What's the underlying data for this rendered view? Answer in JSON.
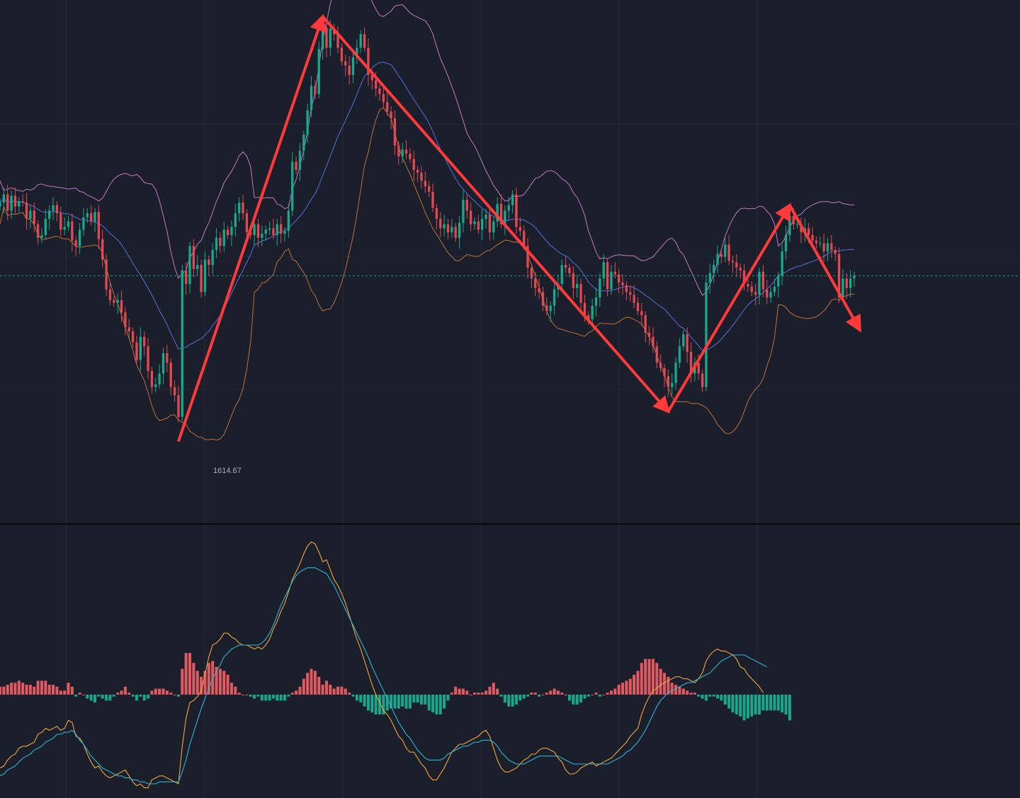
{
  "colors": {
    "background": "#1b1f2b",
    "grid": "#242b38",
    "separator": "#05070b",
    "up_candle": "#1aa88a",
    "down_candle": "#e04a55",
    "bb_upper": "#c678c6",
    "bb_middle": "#5a6ee0",
    "bb_lower": "#c0703a",
    "macd_line": "#f3a53a",
    "signal_line": "#2fb4d8",
    "hist_positive": "#e15a62",
    "hist_negative": "#17a88c",
    "arrow": "#ff3a3a",
    "price_dotted": "#1f8f86"
  },
  "chart_data": [
    {
      "type": "candlestick",
      "panel": "price",
      "indicators": [
        "bollinger_upper",
        "bollinger_middle",
        "bollinger_lower"
      ],
      "annotations": [
        {
          "type": "low_marker",
          "text": "1614.67"
        },
        {
          "type": "trend_arrows",
          "count": 5
        }
      ],
      "close": [
        1776,
        1782,
        1770,
        1781,
        1773,
        1777,
        1776,
        1764,
        1770,
        1760,
        1750,
        1752,
        1764,
        1770,
        1774,
        1768,
        1756,
        1758,
        1762,
        1748,
        1744,
        1756,
        1765,
        1768,
        1762,
        1769,
        1749,
        1734,
        1712,
        1704,
        1702,
        1704,
        1695,
        1684,
        1681,
        1673,
        1660,
        1677,
        1670,
        1652,
        1640,
        1642,
        1650,
        1665,
        1658,
        1640,
        1634,
        1618,
        1726,
        1716,
        1744,
        1727,
        1730,
        1710,
        1734,
        1730,
        1741,
        1750,
        1744,
        1756,
        1752,
        1758,
        1768,
        1776,
        1768,
        1754,
        1752,
        1760,
        1750,
        1753,
        1756,
        1757,
        1752,
        1760,
        1753,
        1755,
        1770,
        1806,
        1800,
        1814,
        1826,
        1844,
        1862,
        1856,
        1889,
        1905,
        1890,
        1904,
        1900,
        1890,
        1880,
        1877,
        1870,
        1883,
        1890,
        1900,
        1890,
        1870,
        1866,
        1860,
        1856,
        1850,
        1843,
        1838,
        1818,
        1810,
        1815,
        1812,
        1808,
        1800,
        1798,
        1792,
        1788,
        1784,
        1772,
        1764,
        1757,
        1760,
        1754,
        1758,
        1750,
        1761,
        1778,
        1770,
        1760,
        1762,
        1756,
        1764,
        1767,
        1754,
        1762,
        1775,
        1760,
        1770,
        1774,
        1782,
        1758,
        1755,
        1744,
        1728,
        1720,
        1713,
        1710,
        1700,
        1696,
        1700,
        1712,
        1716,
        1730,
        1728,
        1724,
        1713,
        1716,
        1702,
        1693,
        1690,
        1700,
        1706,
        1720,
        1732,
        1712,
        1725,
        1723,
        1717,
        1715,
        1710,
        1708,
        1702,
        1696,
        1693,
        1680,
        1677,
        1670,
        1658,
        1654,
        1648,
        1640,
        1643,
        1658,
        1670,
        1679,
        1666,
        1650,
        1658,
        1650,
        1640,
        1717,
        1724,
        1730,
        1738,
        1736,
        1745,
        1733,
        1732,
        1728,
        1726,
        1716,
        1714,
        1710,
        1708,
        1725,
        1712,
        1706,
        1710,
        1714,
        1722,
        1740,
        1752,
        1766,
        1760,
        1760,
        1754,
        1757,
        1752,
        1748,
        1746,
        1746,
        1740,
        1746,
        1741,
        1738,
        1706,
        1720,
        1713,
        1720,
        1722
      ],
      "y_range": [
        1560,
        1920
      ]
    },
    {
      "type": "macd",
      "panel": "oscillator",
      "series": [
        {
          "key": "macd_line",
          "values": [
            -37,
            -36,
            -33,
            -31,
            -30,
            -27,
            -26,
            -26,
            -25,
            -24,
            -20,
            -19,
            -17,
            -18,
            -17,
            -16,
            -18,
            -17,
            -13,
            -14,
            -21,
            -22,
            -25,
            -30,
            -34,
            -37,
            -36,
            -39,
            -41,
            -42,
            -41,
            -40,
            -39,
            -38,
            -41,
            -44,
            -46,
            -45,
            -47,
            -47,
            -43,
            -42,
            -41,
            -41,
            -42,
            -43,
            -44,
            -45,
            -26,
            -12,
            -4,
            -3,
            -1,
            2,
            10,
            19,
            25,
            26,
            28,
            31,
            31,
            29,
            28,
            26,
            25,
            25,
            24,
            23,
            24,
            23,
            25,
            28,
            33,
            37,
            42,
            46,
            52,
            58,
            62,
            66,
            71,
            75,
            77,
            76,
            72,
            67,
            68,
            63,
            58,
            55,
            51,
            46,
            40,
            34,
            28,
            23,
            17,
            11,
            5,
            0,
            -4,
            -8,
            -10,
            -13,
            -17,
            -21,
            -23,
            -27,
            -29,
            -29,
            -32,
            -35,
            -37,
            -41,
            -43,
            -43,
            -40,
            -37,
            -33,
            -29,
            -27,
            -25,
            -25,
            -24,
            -23,
            -22,
            -21,
            -19,
            -18,
            -21,
            -27,
            -33,
            -37,
            -39,
            -39,
            -38,
            -37,
            -35,
            -33,
            -32,
            -30,
            -30,
            -28,
            -27,
            -27,
            -28,
            -29,
            -32,
            -34,
            -38,
            -40,
            -40,
            -39,
            -37,
            -36,
            -35,
            -34,
            -36,
            -35,
            -34,
            -33,
            -32,
            -30,
            -28,
            -26,
            -24,
            -21,
            -19,
            -17,
            -10,
            -5,
            -1,
            2,
            3,
            5,
            6,
            7,
            8,
            9,
            9,
            8,
            8,
            7,
            6,
            8,
            11,
            17,
            20,
            22,
            23,
            22,
            22,
            21,
            20,
            18,
            14,
            13,
            10,
            8,
            6,
            4,
            1
          ]
        },
        {
          "key": "signal_line",
          "values": [
            -41,
            -40,
            -38,
            -37,
            -36,
            -34,
            -32,
            -31,
            -30,
            -28,
            -27,
            -26,
            -24,
            -23,
            -22,
            -20,
            -20,
            -19,
            -19,
            -18,
            -20,
            -23,
            -25,
            -28,
            -31,
            -33,
            -35,
            -37,
            -38,
            -39,
            -40,
            -41,
            -41,
            -42,
            -42,
            -43,
            -43,
            -44,
            -44,
            -45,
            -45,
            -45,
            -44,
            -44,
            -44,
            -44,
            -44,
            -44,
            -39,
            -33,
            -25,
            -19,
            -13,
            -7,
            -2,
            3,
            8,
            12,
            15,
            19,
            21,
            23,
            24,
            25,
            25,
            25,
            25,
            25,
            25,
            26,
            28,
            31,
            35,
            40,
            45,
            49,
            53,
            57,
            60,
            62,
            63,
            64,
            64,
            64,
            63,
            62,
            61,
            58,
            55,
            51,
            47,
            43,
            39,
            35,
            31,
            27,
            23,
            19,
            14,
            10,
            6,
            2,
            -2,
            -6,
            -10,
            -14,
            -17,
            -20,
            -22,
            -25,
            -28,
            -30,
            -32,
            -33,
            -33,
            -33,
            -33,
            -32,
            -30,
            -29,
            -28,
            -27,
            -26,
            -26,
            -25,
            -24,
            -24,
            -23,
            -23,
            -23,
            -24,
            -26,
            -29,
            -31,
            -33,
            -34,
            -35,
            -35,
            -35,
            -34,
            -33,
            -32,
            -31,
            -31,
            -31,
            -31,
            -31,
            -31,
            -32,
            -33,
            -34,
            -35,
            -35,
            -35,
            -35,
            -35,
            -35,
            -35,
            -35,
            -35,
            -35,
            -34,
            -33,
            -32,
            -31,
            -29,
            -28,
            -26,
            -24,
            -21,
            -18,
            -14,
            -10,
            -6,
            -3,
            -1,
            1,
            2,
            3,
            4,
            5,
            6,
            6,
            7,
            8,
            9,
            10,
            11,
            13,
            15,
            17,
            18,
            19,
            20,
            20,
            20,
            20,
            19,
            18,
            17,
            16,
            15,
            14
          ]
        },
        {
          "key": "histogram",
          "values": [
            4,
            4,
            5,
            6,
            6,
            7,
            6,
            5,
            5,
            4,
            7,
            7,
            7,
            5,
            5,
            4,
            2,
            2,
            6,
            4,
            -1,
            1,
            0,
            -2,
            -3,
            -4,
            -1,
            -2,
            -3,
            -3,
            -1,
            1,
            2,
            4,
            1,
            -1,
            -3,
            -1,
            -3,
            -2,
            2,
            3,
            3,
            3,
            2,
            1,
            0,
            -1,
            13,
            21,
            21,
            16,
            12,
            9,
            12,
            16,
            17,
            14,
            13,
            12,
            10,
            6,
            4,
            1,
            0,
            0,
            -1,
            -2,
            -1,
            -3,
            -3,
            -3,
            -2,
            -3,
            -3,
            -3,
            -1,
            1,
            2,
            4,
            8,
            11,
            13,
            12,
            9,
            5,
            7,
            5,
            3,
            4,
            4,
            3,
            1,
            -1,
            -3,
            -4,
            -6,
            -8,
            -9,
            -10,
            -10,
            -10,
            -8,
            -7,
            -7,
            -7,
            -6,
            -7,
            -7,
            -4,
            -4,
            -5,
            -5,
            -8,
            -9,
            -10,
            -10,
            -7,
            -3,
            1,
            4,
            3,
            3,
            2,
            0,
            1,
            1,
            1,
            2,
            4,
            6,
            3,
            -1,
            -4,
            -6,
            -6,
            -5,
            -3,
            -2,
            -1,
            1,
            1,
            -1,
            0,
            1,
            2,
            3,
            2,
            1,
            0,
            -3,
            -5,
            -5,
            -4,
            -2,
            -1,
            0,
            1,
            -1,
            0,
            1,
            2,
            3,
            5,
            6,
            7,
            8,
            10,
            12,
            16,
            18,
            18,
            18,
            16,
            13,
            11,
            9,
            6,
            5,
            4,
            3,
            2,
            1,
            1,
            -1,
            -2,
            -3,
            -1,
            -1,
            -2,
            -3,
            -5,
            -7,
            -9,
            -10,
            -11,
            -13,
            -12,
            -11,
            -10,
            -10,
            -8,
            -8,
            -8,
            -8,
            -8,
            -9,
            -10,
            -13
          ]
        }
      ]
    }
  ],
  "labels": {
    "low_value": "1614.67"
  }
}
